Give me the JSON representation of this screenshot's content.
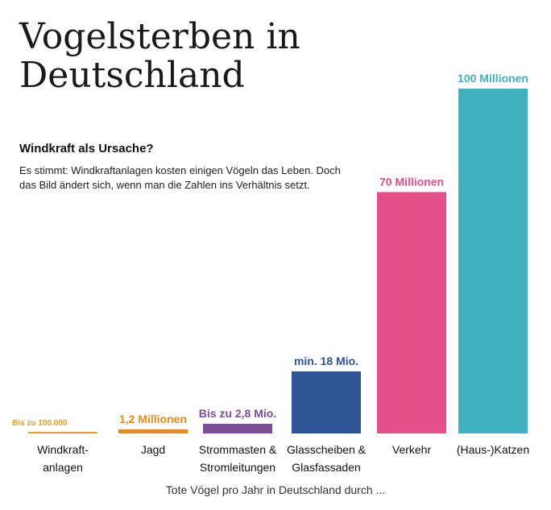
{
  "title": "Vogelsterben in Deutschland",
  "subtitle": "Windkraft als Ursache?",
  "description": "Es stimmt: Windkraftanlagen kosten einigen Vögeln das Leben. Doch das Bild ändert sich, wenn man die Zahlen ins Verhältnis setzt.",
  "chart_data": {
    "type": "bar",
    "xlabel": "Tote Vögel pro Jahr in Deutschland durch ...",
    "ylabel": "",
    "ylim": [
      0,
      100
    ],
    "grid": false,
    "legend": "none",
    "categories": [
      [
        "Windkraft-",
        "anlagen"
      ],
      [
        "Jagd"
      ],
      [
        "Strommasten &",
        "Stromleitungen"
      ],
      [
        "Glasscheiben &",
        "Glasfassaden"
      ],
      [
        "Verkehr"
      ],
      [
        "(Haus-)Katzen"
      ]
    ],
    "values": [
      0.1,
      1.2,
      2.8,
      18,
      70,
      100
    ],
    "value_labels": [
      "Bis zu 100.000",
      "1,2 Millionen",
      "Bis zu 2,8 Mio.",
      "min. 18 Mio.",
      "70 Millionen",
      "100 Millionen"
    ],
    "colors": [
      "#e5a21e",
      "#e88b1c",
      "#7a4e98",
      "#2f5596",
      "#e54f8a",
      "#3fb2bf"
    ]
  }
}
